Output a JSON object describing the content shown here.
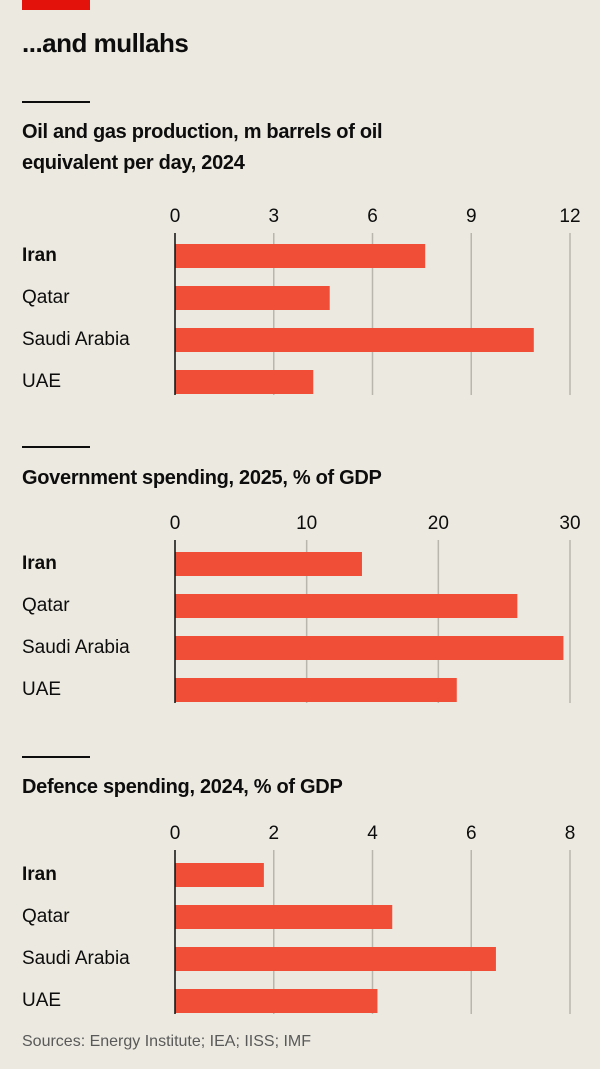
{
  "title": "...and mullahs",
  "source": "Sources: Energy Institute; IEA; IISS; IMF",
  "chart_data": [
    {
      "type": "bar",
      "orientation": "horizontal",
      "title": "Oil and gas production, m barrels of oil equivalent per day, 2024",
      "categories": [
        "Iran",
        "Qatar",
        "Saudi Arabia",
        "UAE"
      ],
      "values": [
        7.6,
        4.7,
        10.9,
        4.2
      ],
      "color": "#f04e37",
      "xlim": [
        0,
        12
      ],
      "xticks": [
        0,
        3,
        6,
        9,
        12
      ],
      "grid": true,
      "highlight_index": 0
    },
    {
      "type": "bar",
      "orientation": "horizontal",
      "title": "Government spending, 2025, % of GDP",
      "categories": [
        "Iran",
        "Qatar",
        "Saudi Arabia",
        "UAE"
      ],
      "values": [
        14.2,
        26.0,
        29.5,
        21.4
      ],
      "color": "#f04e37",
      "xlim": [
        0,
        30
      ],
      "xticks": [
        0,
        10,
        20,
        30
      ],
      "grid": true,
      "highlight_index": 0
    },
    {
      "type": "bar",
      "orientation": "horizontal",
      "title": "Defence spending, 2024, % of GDP",
      "categories": [
        "Iran",
        "Qatar",
        "Saudi Arabia",
        "UAE"
      ],
      "values": [
        1.8,
        4.4,
        6.5,
        4.1
      ],
      "color": "#f04e37",
      "xlim": [
        0,
        8
      ],
      "xticks": [
        0,
        2,
        4,
        6,
        8
      ],
      "grid": true,
      "highlight_index": 0
    }
  ]
}
